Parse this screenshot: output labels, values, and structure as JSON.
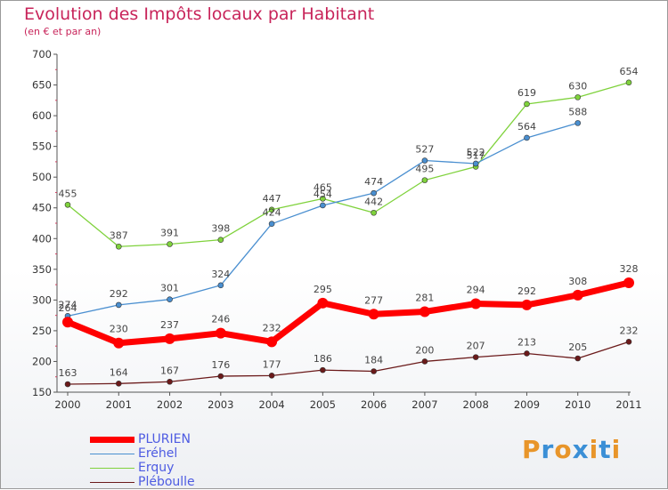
{
  "title": "Evolution des Impôts locaux par Habitant",
  "subtitle": "(en € et par an)",
  "logo": {
    "text": "Proxiti",
    "letter_colors": [
      "#e8952a",
      "#3b8fd6",
      "#e8952a",
      "#3b8fd6",
      "#e8952a",
      "#3b8fd6",
      "#e8952a"
    ]
  },
  "chart_data": {
    "type": "line",
    "title": "Evolution des Impôts locaux par Habitant",
    "subtitle": "(en € et par an)",
    "x": [
      "2000",
      "2001",
      "2002",
      "2003",
      "2004",
      "2005",
      "2006",
      "2007",
      "2008",
      "2009",
      "2010",
      "2011"
    ],
    "ylim": [
      150,
      700
    ],
    "yticks": [
      150,
      200,
      250,
      300,
      350,
      400,
      450,
      500,
      550,
      600,
      650,
      700
    ],
    "grid": false,
    "legend_position": "bottom-left",
    "series": [
      {
        "name": "PLURIEN",
        "color": "#ff0000",
        "values": [
          264,
          230,
          237,
          246,
          232,
          295,
          277,
          281,
          294,
          292,
          308,
          328
        ],
        "labels": [
          "264",
          "230",
          "237",
          "246",
          "232",
          "295",
          "277",
          "281",
          "294",
          "292",
          "308",
          "328"
        ]
      },
      {
        "name": "Eréhel",
        "color": "#4a8fd0",
        "values": [
          274,
          292,
          301,
          324,
          424,
          454,
          474,
          527,
          522,
          564,
          588,
          null
        ],
        "labels": [
          "274",
          "292",
          "301",
          "324",
          "424",
          "454",
          "474",
          "527",
          "522",
          "564",
          "588",
          ""
        ]
      },
      {
        "name": "Erquy",
        "color": "#7fd23c",
        "values": [
          455,
          387,
          391,
          398,
          447,
          465,
          442,
          495,
          517,
          619,
          630,
          654
        ],
        "labels": [
          "455",
          "387",
          "391",
          "398",
          "447",
          "465",
          "442",
          "495",
          "517",
          "619",
          "630",
          "654"
        ]
      },
      {
        "name": "Pléboulle",
        "color": "#6b1a1a",
        "values": [
          163,
          164,
          167,
          176,
          177,
          186,
          184,
          200,
          207,
          213,
          205,
          232
        ],
        "labels": [
          "163",
          "164",
          "167",
          "176",
          "177",
          "186",
          "184",
          "200",
          "207",
          "213",
          "205",
          "232"
        ]
      }
    ]
  }
}
